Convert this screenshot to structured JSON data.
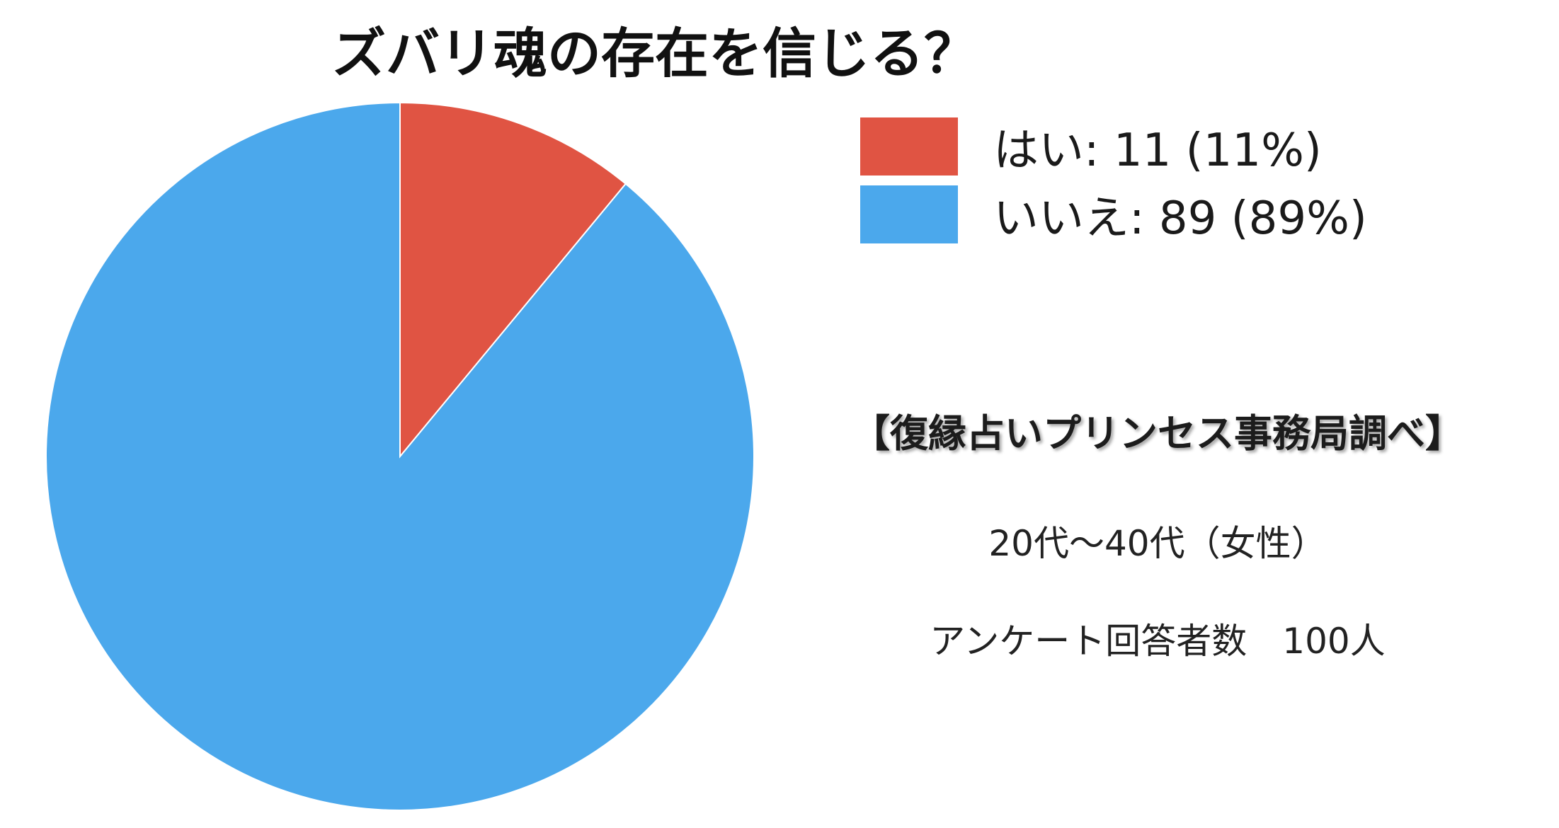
{
  "chart_data": {
    "type": "pie",
    "title": "ズバリ魂の存在を信じる？",
    "slices": [
      {
        "label": "はい",
        "value": 11,
        "percent": 11,
        "color": "#E05443"
      },
      {
        "label": "いいえ",
        "value": 89,
        "percent": 89,
        "color": "#4BA8EC"
      }
    ],
    "legend": [
      "はい: 11 (11%)",
      "いいえ: 89 (89%)"
    ],
    "legend_position": "top-right"
  },
  "notes": {
    "source": "【復縁占いプリンセス事務局調べ】",
    "demographic": "20代〜40代（女性）",
    "respondents": "アンケート回答者数　100人"
  }
}
